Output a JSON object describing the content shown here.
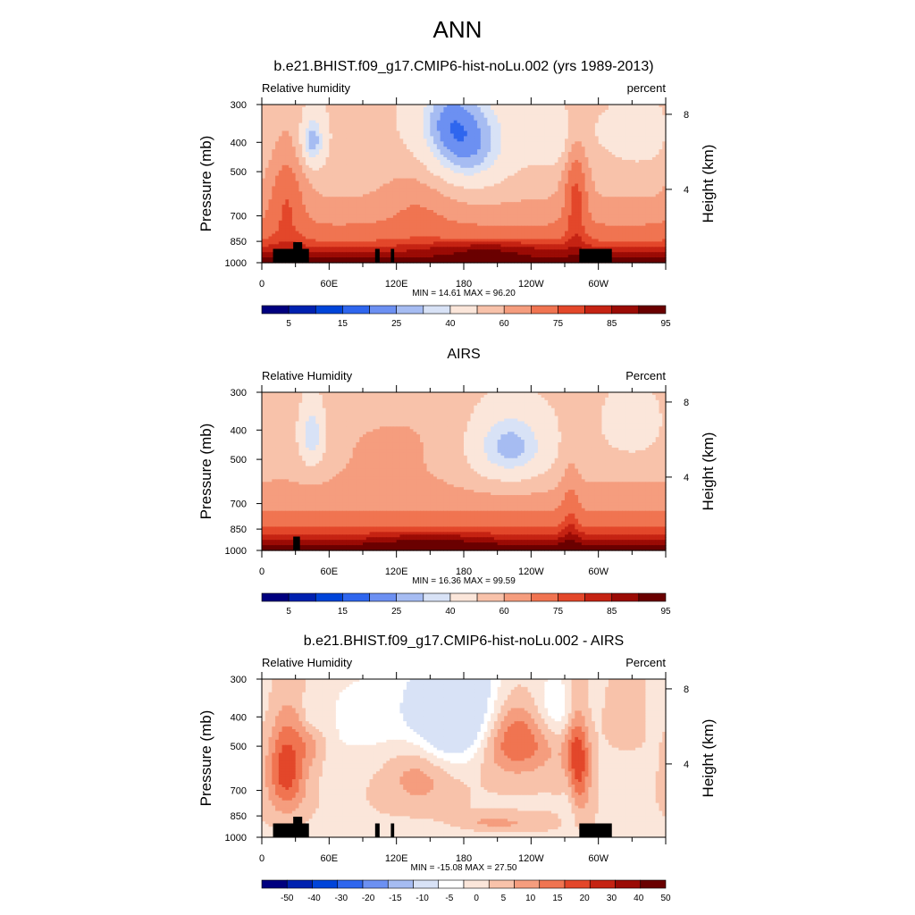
{
  "page": {
    "title": "ANN"
  },
  "colors": {
    "seq": [
      "#00007f",
      "#0021b0",
      "#0044d9",
      "#2f66ee",
      "#6c90f2",
      "#a6bcf2",
      "#d8e2f6",
      "#fbe6da",
      "#f8c2aa",
      "#f59d7e",
      "#f07451",
      "#e3472a",
      "#c52313",
      "#9b0b05",
      "#6a0000"
    ],
    "div": [
      "#00007f",
      "#0021b0",
      "#0044d9",
      "#2f66ee",
      "#6c90f2",
      "#a6bcf2",
      "#d8e2f6",
      "#ffffff",
      "#fbe6da",
      "#f8c2aa",
      "#f59d7e",
      "#f07451",
      "#e3472a",
      "#c52313",
      "#9b0b05",
      "#6a0000"
    ],
    "land": "#000000"
  },
  "chart_data": [
    {
      "type": "heatmap",
      "title": "b.e21.BHIST.f09_g17.CMIP6-hist-noLu.002 (yrs 1989-2013)",
      "left_label": "Relative humidity",
      "right_label": "percent",
      "ylabel": "Pressure (mb)",
      "ylabel_right": "Height (km)",
      "x_ticks": [
        "0",
        "60E",
        "120E",
        "180",
        "120W",
        "60W"
      ],
      "y_ticks": [
        "300",
        "400",
        "500",
        "700",
        "850",
        "1000"
      ],
      "right_ticks": [
        "8",
        "4"
      ],
      "stats": "MIN =  14.61  MAX =  96.20",
      "colorbar_labels": [
        "5",
        "15",
        "25",
        "40",
        "60",
        "75",
        "85",
        "95"
      ],
      "levels": [
        2,
        5,
        10,
        15,
        20,
        25,
        30,
        40,
        50,
        60,
        70,
        75,
        80,
        85,
        90,
        95
      ],
      "scale": "seq",
      "field": "model",
      "terrain": "model",
      "xlim": [
        0,
        360
      ],
      "ylim": [
        1000,
        300
      ]
    },
    {
      "type": "heatmap",
      "title": "AIRS",
      "left_label": "Relative Humidity",
      "right_label": "Percent",
      "ylabel": "Pressure (mb)",
      "ylabel_right": "Height (km)",
      "x_ticks": [
        "0",
        "60E",
        "120E",
        "180",
        "120W",
        "60W"
      ],
      "y_ticks": [
        "300",
        "400",
        "500",
        "700",
        "850",
        "1000"
      ],
      "right_ticks": [
        "8",
        "4"
      ],
      "stats": "MIN =  16.36  MAX =  99.59",
      "colorbar_labels": [
        "5",
        "15",
        "25",
        "40",
        "60",
        "75",
        "85",
        "95"
      ],
      "levels": [
        2,
        5,
        10,
        15,
        20,
        25,
        30,
        40,
        50,
        60,
        70,
        75,
        80,
        85,
        90,
        95
      ],
      "scale": "seq",
      "field": "obs",
      "terrain": "obs",
      "xlim": [
        0,
        360
      ],
      "ylim": [
        1000,
        300
      ]
    },
    {
      "type": "heatmap",
      "title": "b.e21.BHIST.f09_g17.CMIP6-hist-noLu.002 - AIRS",
      "left_label": "Relative Humidity",
      "right_label": "Percent",
      "ylabel": "Pressure (mb)",
      "ylabel_right": "Height (km)",
      "x_ticks": [
        "0",
        "60E",
        "120E",
        "180",
        "120W",
        "60W"
      ],
      "y_ticks": [
        "300",
        "400",
        "500",
        "700",
        "850",
        "1000"
      ],
      "right_ticks": [
        "8",
        "4"
      ],
      "stats": "MIN = -15.08  MAX =  27.50",
      "colorbar_labels": [
        "-50",
        "-40",
        "-30",
        "-20",
        "-15",
        "-10",
        "-5",
        "0",
        "5",
        "10",
        "15",
        "20",
        "30",
        "40",
        "50"
      ],
      "levels": [
        -60,
        -50,
        -40,
        -30,
        -20,
        -15,
        -10,
        -5,
        0,
        5,
        10,
        15,
        20,
        30,
        40,
        50,
        60
      ],
      "scale": "div",
      "field": "diff",
      "terrain": "model",
      "xlim": [
        0,
        360
      ],
      "ylim": [
        1000,
        300
      ]
    }
  ]
}
